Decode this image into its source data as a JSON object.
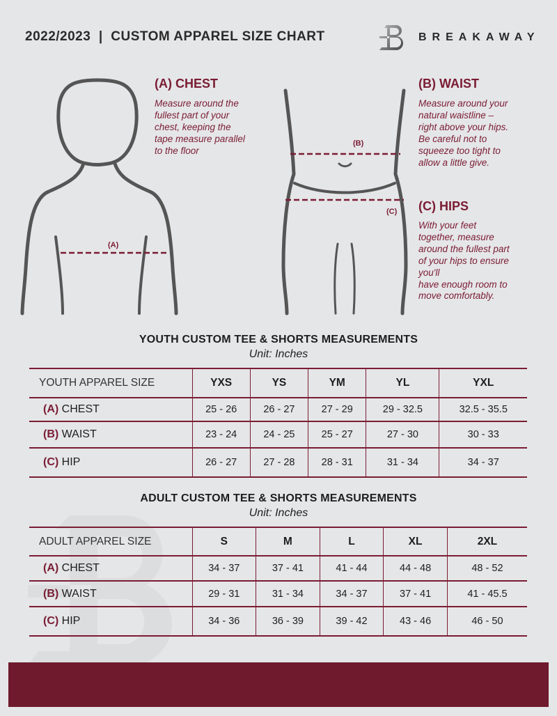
{
  "header": {
    "title": "2022/2023  |  CUSTOM APPAREL SIZE CHART",
    "brand": "BREAKAWAY"
  },
  "measures": {
    "chest": {
      "heading": "(A) CHEST",
      "text": [
        "Measure around the",
        "fullest part of your",
        "chest, keeping the",
        "tape measure parallel",
        "to the floor"
      ],
      "label": "(A)"
    },
    "waist": {
      "heading": "(B) WAIST",
      "text": [
        "Measure around your",
        "natural waistline –",
        "right above your hips.",
        "Be careful not to",
        "squeeze too tight to",
        "allow a little give."
      ],
      "label": "(B)"
    },
    "hips": {
      "heading": "(C) HIPS",
      "text": [
        "With your feet",
        "together, measure",
        "around the fullest part",
        "of your hips to ensure",
        "you'll",
        "have enough room to",
        "move comfortably."
      ],
      "label": "(C)"
    }
  },
  "youth": {
    "title": "YOUTH CUSTOM TEE & SHORTS MEASUREMENTS",
    "unit": "Unit: Inches",
    "header": "YOUTH APPAREL SIZE",
    "sizes": [
      "YXS",
      "YS",
      "YM",
      "YL",
      "YXL"
    ],
    "rows": [
      {
        "letter": "(A)",
        "name": "CHEST",
        "values": [
          "25 - 26",
          "26 - 27",
          "27 - 29",
          "29 - 32.5",
          "32.5 - 35.5"
        ]
      },
      {
        "letter": "(B)",
        "name": "WAIST",
        "values": [
          "23 - 24",
          "24 - 25",
          "25 - 27",
          "27 - 30",
          "30 - 33"
        ]
      },
      {
        "letter": "(C)",
        "name": "HIP",
        "values": [
          "26 - 27",
          "27 - 28",
          "28 - 31",
          "31 - 34",
          "34 - 37"
        ]
      }
    ]
  },
  "adult": {
    "title": "ADULT CUSTOM TEE & SHORTS MEASUREMENTS",
    "unit": "Unit: Inches",
    "header": "ADULT APPAREL SIZE",
    "sizes": [
      "S",
      "M",
      "L",
      "XL",
      "2XL"
    ],
    "rows": [
      {
        "letter": "(A)",
        "name": "CHEST",
        "values": [
          "34 - 37",
          "37 - 41",
          "41 - 44",
          "44 - 48",
          "48 - 52"
        ]
      },
      {
        "letter": "(B)",
        "name": "WAIST",
        "values": [
          "29 - 31",
          "31 - 34",
          "34 - 37",
          "37 - 41",
          "41 - 45.5"
        ]
      },
      {
        "letter": "(C)",
        "name": "HIP",
        "values": [
          "34 - 36",
          "36 - 39",
          "39 - 42",
          "43 - 46",
          "46 - 50"
        ]
      }
    ]
  },
  "colors": {
    "accent": "#7a1c33",
    "footer": "#6f1a2d",
    "background": "#e5e6e8"
  }
}
